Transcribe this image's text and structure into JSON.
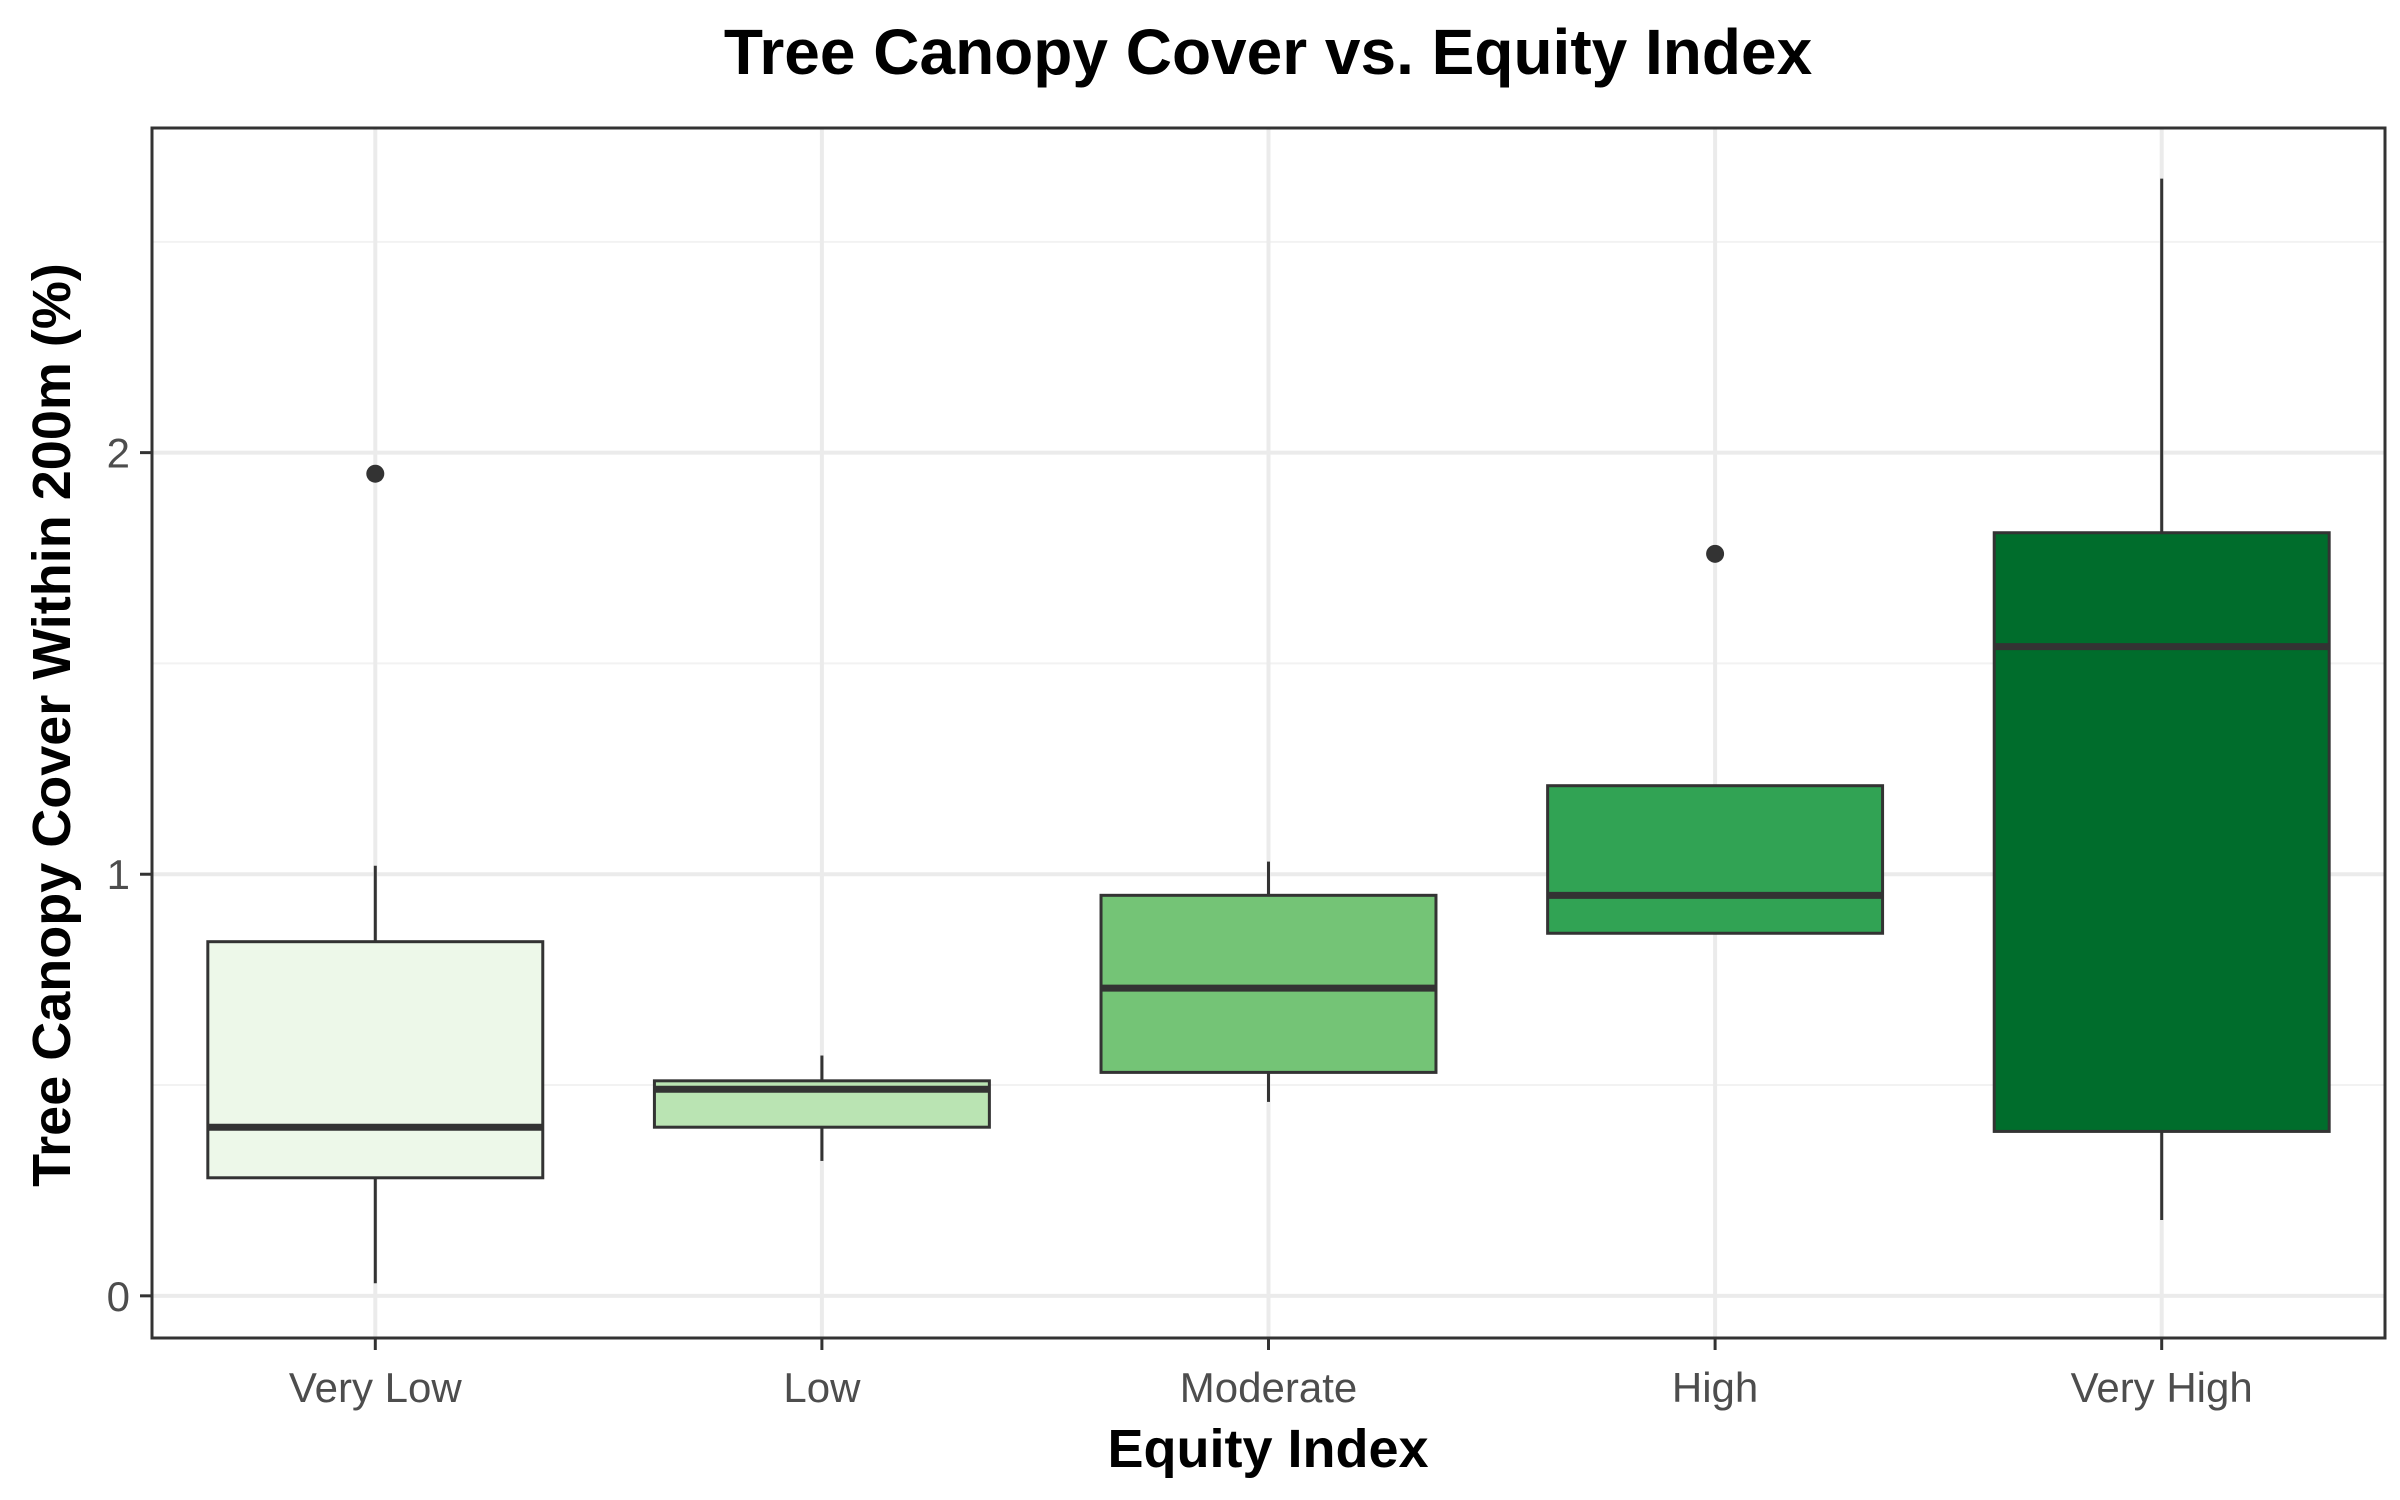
{
  "chart_data": {
    "type": "boxplot",
    "title": "Tree Canopy Cover vs. Equity Index",
    "xlabel": "Equity Index",
    "ylabel": "Tree Canopy Cover Within 200m (%)",
    "ylim": [
      -0.1,
      2.77
    ],
    "y_ticks": [
      0,
      1,
      2
    ],
    "y_tick_labels": [
      "0",
      "1",
      "2"
    ],
    "grid": true,
    "categories": [
      "Very Low",
      "Low",
      "Moderate",
      "High",
      "Very High"
    ],
    "boxes": [
      {
        "category": "Very Low",
        "whisker_low": 0.03,
        "q1": 0.28,
        "median": 0.4,
        "q3": 0.84,
        "whisker_high": 1.02,
        "outliers": [
          1.95
        ],
        "fill": "#edf8e9"
      },
      {
        "category": "Low",
        "whisker_low": 0.32,
        "q1": 0.4,
        "median": 0.49,
        "q3": 0.51,
        "whisker_high": 0.57,
        "outliers": [],
        "fill": "#bae4b3"
      },
      {
        "category": "Moderate",
        "whisker_low": 0.46,
        "q1": 0.53,
        "median": 0.73,
        "q3": 0.95,
        "whisker_high": 1.03,
        "outliers": [],
        "fill": "#74c476"
      },
      {
        "category": "High",
        "whisker_low": 0.86,
        "q1": 0.86,
        "median": 0.95,
        "q3": 1.21,
        "whisker_high": 1.21,
        "outliers": [
          1.76
        ],
        "fill": "#31a354"
      },
      {
        "category": "Very High",
        "whisker_low": 0.18,
        "q1": 0.39,
        "median": 1.54,
        "q3": 1.81,
        "whisker_high": 2.65,
        "outliers": [],
        "fill": "#006d2c"
      }
    ],
    "colors": {
      "box_stroke": "#333333",
      "grid_major": "#ebebeb",
      "grid_minor": "#f2f2f2",
      "panel_border": "#333333",
      "tick_label": "#4d4d4d"
    }
  }
}
